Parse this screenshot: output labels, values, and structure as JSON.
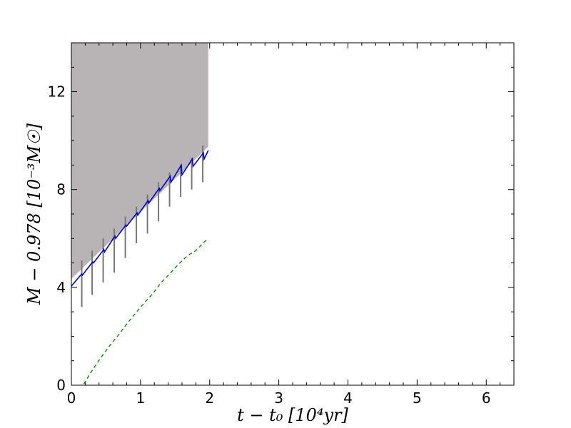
{
  "chart_data": {
    "type": "line",
    "xlabel": "t − t₀ [10⁴yr]",
    "ylabel": "M − 0.978 [10⁻³M☉]",
    "xlim": [
      0,
      6.4
    ],
    "ylim": [
      0,
      14
    ],
    "x_ticks": [
      0,
      1,
      2,
      3,
      4,
      5,
      6
    ],
    "y_ticks": [
      0,
      4,
      8,
      12
    ],
    "grid": false,
    "colors": {
      "band": "#b8b4b5",
      "blue_line": "#0000cc",
      "gray_trace": "#777777",
      "green_dashed": "#008000"
    },
    "shaded_region": {
      "x": [
        0,
        1.98
      ],
      "lower_y": [
        [
          0,
          4.35
        ],
        [
          1.98,
          9.75
        ]
      ],
      "upper_y": 14
    },
    "series": [
      {
        "style": "solid",
        "color": "#0000cc",
        "x": [
          0.0,
          0.15,
          0.16,
          0.31,
          0.32,
          0.47,
          0.48,
          0.63,
          0.64,
          0.79,
          0.8,
          0.95,
          0.96,
          1.11,
          1.12,
          1.27,
          1.28,
          1.43,
          1.44,
          1.59,
          1.6,
          1.75,
          1.76,
          1.91,
          1.92,
          1.98
        ],
        "y": [
          4.05,
          4.55,
          4.5,
          5.05,
          5.0,
          5.55,
          5.45,
          6.1,
          6.0,
          6.55,
          6.5,
          7.05,
          6.95,
          7.55,
          7.45,
          8.05,
          7.95,
          8.55,
          8.3,
          9.0,
          8.6,
          9.25,
          8.95,
          9.5,
          9.25,
          9.6
        ]
      },
      {
        "style": "dashed",
        "color": "#008000",
        "x": [
          0.18,
          0.3,
          0.42,
          0.55,
          0.68,
          0.8,
          0.93,
          1.05,
          1.18,
          1.3,
          1.42,
          1.55,
          1.68,
          1.8,
          1.92,
          1.98
        ],
        "y": [
          0.05,
          0.6,
          1.1,
          1.6,
          2.05,
          2.5,
          2.95,
          3.35,
          3.75,
          4.2,
          4.55,
          4.95,
          5.3,
          5.5,
          5.85,
          6.0
        ]
      }
    ],
    "spikes": {
      "color": "#777777",
      "x": [
        0.15,
        0.3,
        0.46,
        0.62,
        0.78,
        0.94,
        1.1,
        1.26,
        1.42,
        1.58,
        1.74,
        1.9
      ],
      "y_low": [
        3.2,
        3.7,
        4.2,
        4.6,
        5.2,
        5.8,
        6.2,
        6.7,
        7.3,
        7.7,
        8.0,
        8.3
      ],
      "y_high": [
        5.1,
        5.5,
        6.0,
        6.4,
        6.9,
        7.3,
        7.8,
        8.3,
        8.7,
        9.0,
        9.3,
        9.8
      ]
    }
  }
}
